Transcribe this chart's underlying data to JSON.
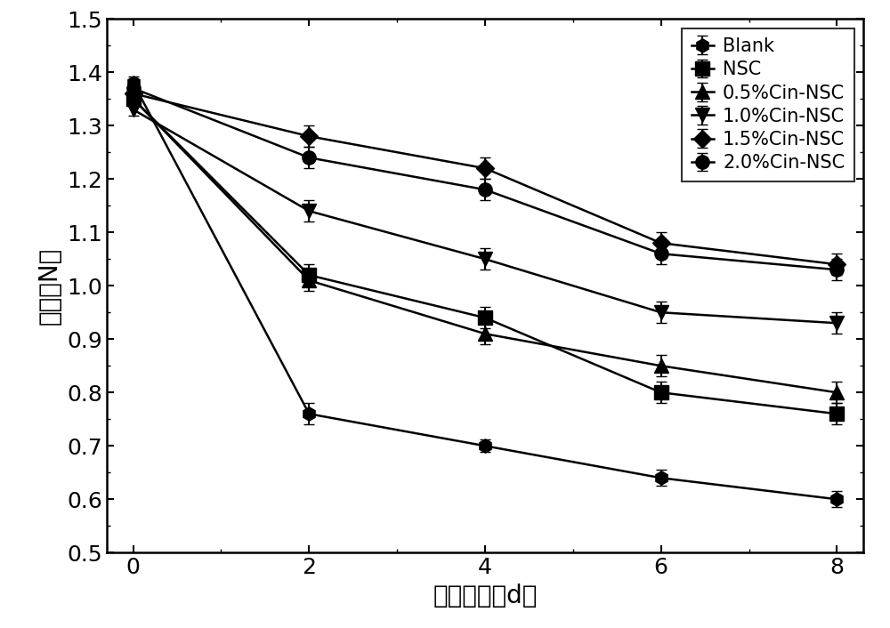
{
  "x": [
    0,
    2,
    4,
    6,
    8
  ],
  "series": [
    {
      "label": "Blank",
      "y": [
        1.38,
        0.76,
        0.7,
        0.64,
        0.6
      ],
      "yerr": [
        0.012,
        0.02,
        0.012,
        0.015,
        0.015
      ],
      "marker": "h",
      "markersize": 11
    },
    {
      "label": "NSC",
      "y": [
        1.35,
        1.02,
        0.94,
        0.8,
        0.76
      ],
      "yerr": [
        0.012,
        0.02,
        0.02,
        0.02,
        0.02
      ],
      "marker": "s",
      "markersize": 11
    },
    {
      "label": "0.5%Cin-NSC",
      "y": [
        1.35,
        1.01,
        0.91,
        0.85,
        0.8
      ],
      "yerr": [
        0.012,
        0.02,
        0.02,
        0.02,
        0.02
      ],
      "marker": "^",
      "markersize": 11
    },
    {
      "label": "1.0%Cin-NSC",
      "y": [
        1.33,
        1.14,
        1.05,
        0.95,
        0.93
      ],
      "yerr": [
        0.012,
        0.02,
        0.02,
        0.02,
        0.02
      ],
      "marker": "v",
      "markersize": 11
    },
    {
      "label": "1.5%Cin-NSC",
      "y": [
        1.36,
        1.28,
        1.22,
        1.08,
        1.04
      ],
      "yerr": [
        0.012,
        0.02,
        0.02,
        0.02,
        0.02
      ],
      "marker": "D",
      "markersize": 10
    },
    {
      "label": "2.0%Cin-NSC",
      "y": [
        1.37,
        1.24,
        1.18,
        1.06,
        1.03
      ],
      "yerr": [
        0.012,
        0.02,
        0.02,
        0.02,
        0.02
      ],
      "marker": "o",
      "markersize": 11
    }
  ],
  "xlabel": "保鲜时间（d）",
  "ylabel": "硬度（N）",
  "xlim": [
    -0.3,
    8.3
  ],
  "ylim": [
    0.5,
    1.5
  ],
  "yticks": [
    0.5,
    0.6,
    0.7,
    0.8,
    0.9,
    1.0,
    1.1,
    1.2,
    1.3,
    1.4,
    1.5
  ],
  "xticks": [
    0,
    2,
    4,
    6,
    8
  ],
  "line_color": "black",
  "marker_color": "black",
  "marker_facecolor": "black",
  "linewidth": 1.8,
  "xlabel_fontsize": 20,
  "ylabel_fontsize": 20,
  "tick_fontsize": 18,
  "legend_fontsize": 15,
  "legend_loc": "upper right"
}
